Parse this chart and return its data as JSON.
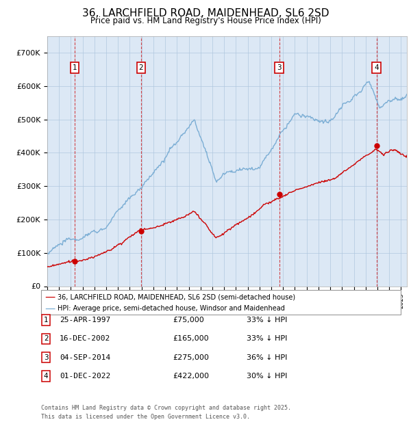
{
  "title": "36, LARCHFIELD ROAD, MAIDENHEAD, SL6 2SD",
  "subtitle": "Price paid vs. HM Land Registry's House Price Index (HPI)",
  "ylim": [
    0,
    750000
  ],
  "yticks": [
    0,
    100000,
    200000,
    300000,
    400000,
    500000,
    600000,
    700000
  ],
  "ytick_labels": [
    "£0",
    "£100K",
    "£200K",
    "£300K",
    "£400K",
    "£500K",
    "£600K",
    "£700K"
  ],
  "plot_bg_color": "#dce8f5",
  "grid_color": "#b0c8df",
  "hpi_color": "#7aadd4",
  "price_color": "#cc0000",
  "vline_color": "#cc0000",
  "purchases": [
    {
      "num": 1,
      "date": "25-APR-1997",
      "price": 75000,
      "year": 1997.32,
      "pct": "33%",
      "dir": "↓"
    },
    {
      "num": 2,
      "date": "16-DEC-2002",
      "price": 165000,
      "year": 2002.96,
      "pct": "33%",
      "dir": "↓"
    },
    {
      "num": 3,
      "date": "04-SEP-2014",
      "price": 275000,
      "year": 2014.67,
      "pct": "36%",
      "dir": "↓"
    },
    {
      "num": 4,
      "date": "01-DEC-2022",
      "price": 422000,
      "year": 2022.92,
      "pct": "30%",
      "dir": "↓"
    }
  ],
  "legend_label_price": "36, LARCHFIELD ROAD, MAIDENHEAD, SL6 2SD (semi-detached house)",
  "legend_label_hpi": "HPI: Average price, semi-detached house, Windsor and Maidenhead",
  "footnote": "Contains HM Land Registry data © Crown copyright and database right 2025.\nThis data is licensed under the Open Government Licence v3.0.",
  "xmin": 1995,
  "xmax": 2025.5
}
